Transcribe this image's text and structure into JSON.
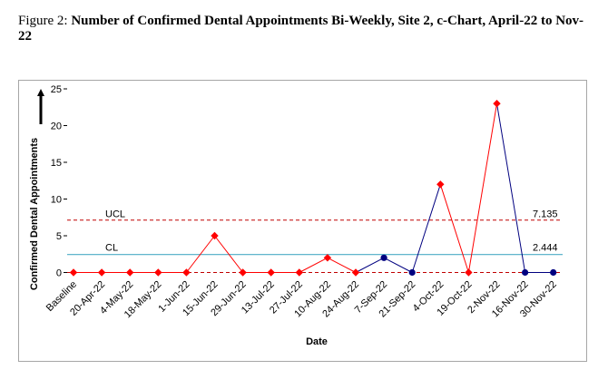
{
  "caption": {
    "prefix": "Figure 2: ",
    "title": "Number of Confirmed Dental Appointments Bi-Weekly, Site 2, c-Chart, April-22 to Nov-22"
  },
  "chart_data": {
    "type": "line",
    "chart_kind": "c-Chart",
    "xlabel": "Date",
    "ylabel": "Confirmed Dental Appointments",
    "ylim": [
      0,
      25
    ],
    "yticks": [
      0,
      5,
      10,
      15,
      20,
      25
    ],
    "categories": [
      "Baseline",
      "20-Apr-22",
      "4-May-22",
      "18-May-22",
      "1-Jun-22",
      "15-Jun-22",
      "29-Jun-22",
      "13-Jul-22",
      "27-Jul-22",
      "10-Aug-22",
      "24-Aug-22",
      "7-Sep-22",
      "21-Sep-22",
      "4-Oct-22",
      "19-Oct-22",
      "2-Nov-22",
      "16-Nov-22",
      "30-Nov-22"
    ],
    "series": [
      {
        "values": [
          0,
          0,
          0,
          0,
          0,
          5,
          0,
          0,
          0,
          2,
          0,
          2,
          0,
          12,
          0,
          23,
          0,
          0
        ],
        "point_colors": [
          "#ff0000",
          "#ff0000",
          "#ff0000",
          "#ff0000",
          "#ff0000",
          "#ff0000",
          "#ff0000",
          "#ff0000",
          "#ff0000",
          "#ff0000",
          "#ff0000",
          "#000080",
          "#000080",
          "#ff0000",
          "#ff0000",
          "#ff0000",
          "#000080",
          "#000080"
        ],
        "point_markers": [
          "diamond",
          "diamond",
          "diamond",
          "diamond",
          "diamond",
          "diamond",
          "diamond",
          "diamond",
          "diamond",
          "diamond",
          "diamond",
          "circle",
          "circle",
          "diamond",
          "diamond",
          "diamond",
          "circle",
          "circle"
        ],
        "segment_colors": [
          "#ff0000",
          "#ff0000",
          "#ff0000",
          "#ff0000",
          "#ff0000",
          "#ff0000",
          "#ff0000",
          "#ff0000",
          "#ff0000",
          "#ff0000",
          "#000080",
          "#000080",
          "#000080",
          "#ff0000",
          "#ff0000",
          "#000080",
          "#000080"
        ]
      }
    ],
    "control_lines": {
      "ucl": {
        "label": "UCL",
        "value": 7.135,
        "value_text": "7.135",
        "color": "#c00000",
        "style": "dashed"
      },
      "cl": {
        "label": "CL",
        "value": 2.444,
        "value_text": "2.444",
        "color": "#4bacc6",
        "style": "solid"
      },
      "lcl": {
        "value": 0,
        "color": "#c00000",
        "style": "dashed"
      }
    },
    "grid": false,
    "legend": "none"
  }
}
